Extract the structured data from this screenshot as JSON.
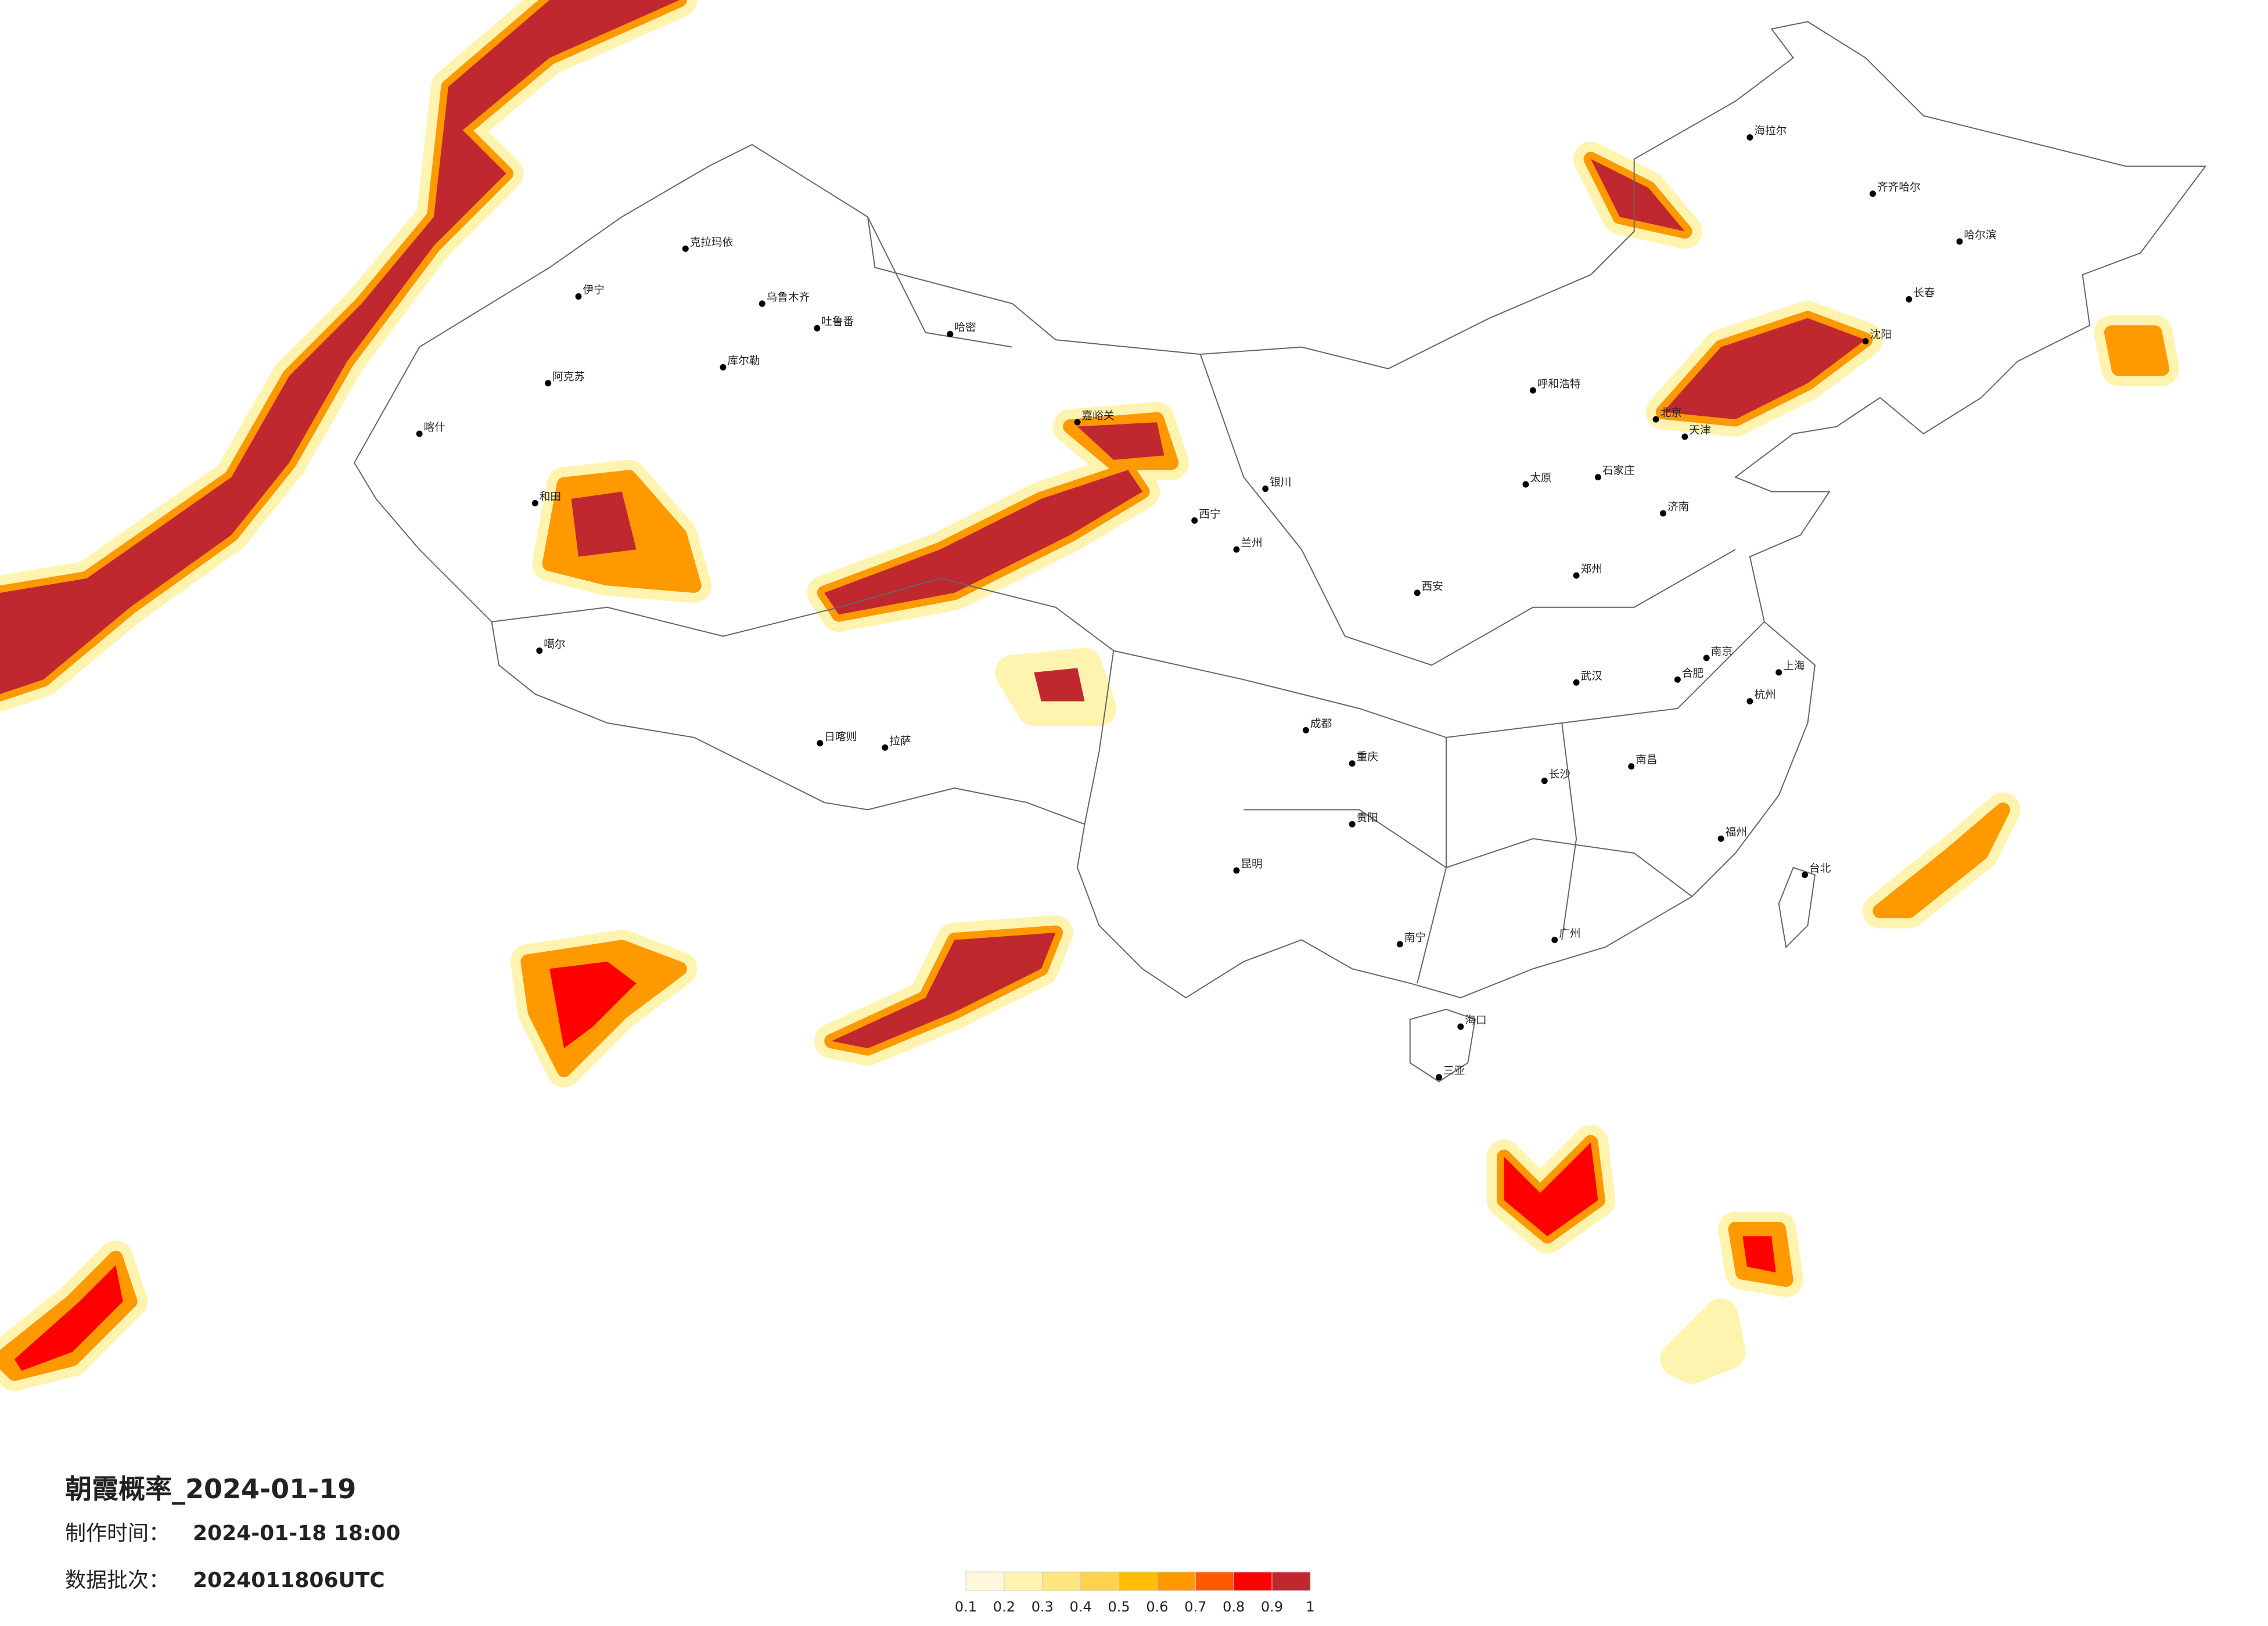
{
  "title": "朝霞概率_2024-01-19",
  "made_label": "制作时间：",
  "made_time": "2024-01-18 18:00",
  "batch_label": "数据批次：",
  "batch": "2024011806UTC",
  "legend": {
    "colors": [
      "#fff8dc",
      "#fff3b0",
      "#ffe680",
      "#ffd24d",
      "#ffbf00",
      "#ff9900",
      "#ff5a00",
      "#ff0000",
      "#c0282f"
    ],
    "ticks": [
      0.1,
      0.2,
      0.3,
      0.4,
      0.5,
      0.6,
      0.7,
      0.8,
      0.9,
      1
    ]
  },
  "cities": [
    "克拉玛依",
    "乌鲁木齐",
    "吐鲁番",
    "哈密",
    "库尔勒",
    "阿克苏",
    "喀什",
    "和田",
    "伊宁",
    "嘉峪关",
    "海拉尔",
    "齐齐哈尔",
    "哈尔滨",
    "长春",
    "沈阳",
    "北京",
    "天津",
    "呼和浩特",
    "太原",
    "石家庄",
    "济南",
    "郑州",
    "西安",
    "兰州",
    "西宁",
    "银川",
    "拉萨",
    "日喀则",
    "噶尔",
    "成都",
    "重庆",
    "贵阳",
    "昆明",
    "南宁",
    "广州",
    "福州",
    "南京",
    "上海",
    "杭州",
    "武汉",
    "长沙",
    "南昌",
    "合肥",
    "海口",
    "三亚",
    "台北"
  ]
}
